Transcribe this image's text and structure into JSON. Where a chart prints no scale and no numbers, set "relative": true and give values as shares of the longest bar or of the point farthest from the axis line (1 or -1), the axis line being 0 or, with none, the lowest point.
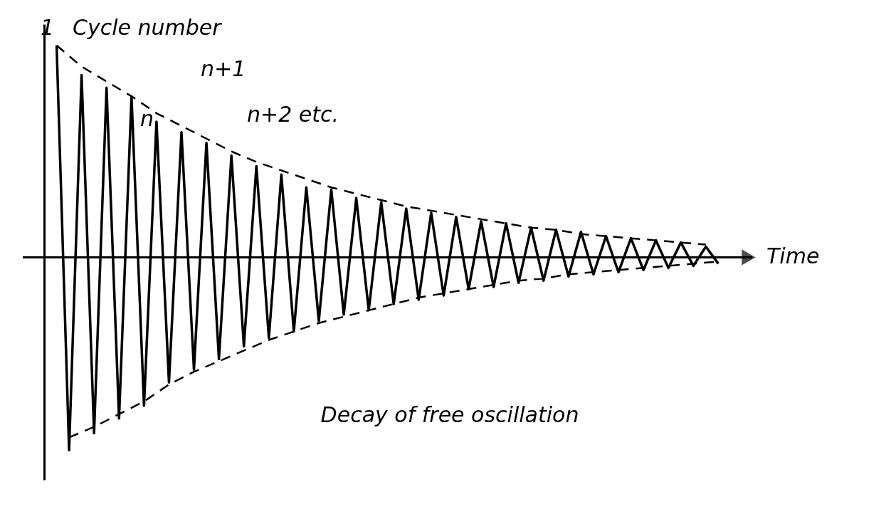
{
  "chart_data": {
    "type": "line",
    "relative": true,
    "xlabel": "Time",
    "tick_labels": false,
    "grid": false,
    "categories": [
      null,
      null,
      null,
      null,
      null,
      null,
      null,
      null,
      null,
      null,
      null,
      null,
      null,
      null,
      null,
      null,
      null,
      null,
      null,
      null,
      null,
      null,
      null,
      null,
      null,
      null,
      null,
      null,
      null,
      null,
      null,
      null,
      null,
      null,
      null,
      null,
      null,
      null,
      null,
      null,
      null,
      null,
      null,
      null,
      null,
      null,
      null,
      null,
      null,
      null,
      null,
      null,
      null,
      null
    ],
    "series": [
      {
        "color": "#000000",
        "line_style": "solid",
        "values": [
          1.0,
          -0.91,
          0.86,
          -0.83,
          0.8,
          -0.76,
          0.76,
          -0.7,
          0.64,
          -0.59,
          0.59,
          -0.53,
          0.54,
          -0.48,
          0.48,
          -0.42,
          0.43,
          -0.38,
          0.39,
          -0.35,
          0.33,
          -0.3,
          0.32,
          -0.27,
          0.28,
          -0.25,
          0.26,
          -0.22,
          0.23,
          -0.2,
          0.21,
          -0.18,
          0.19,
          -0.15,
          0.17,
          -0.14,
          0.16,
          -0.12,
          0.14,
          -0.11,
          0.13,
          -0.09,
          0.12,
          -0.08,
          0.1,
          -0.07,
          0.09,
          -0.06,
          0.08,
          -0.05,
          0.07,
          -0.04,
          0.05,
          -0.03
        ]
      },
      {
        "color": "#000000",
        "line_style": "dashed",
        "values": [
          1.0,
          null,
          0.9,
          null,
          0.83,
          null,
          0.76,
          null,
          0.68,
          null,
          0.62,
          null,
          0.56,
          null,
          0.5,
          null,
          0.45,
          null,
          0.41,
          null,
          0.37,
          null,
          0.33,
          null,
          0.3,
          null,
          0.27,
          null,
          0.24,
          null,
          0.22,
          null,
          0.2,
          null,
          0.18,
          null,
          0.16,
          null,
          0.14,
          null,
          0.13,
          null,
          0.11,
          null,
          0.1,
          null,
          0.09,
          null,
          0.08,
          null,
          0.07,
          null,
          0.06,
          null
        ]
      },
      {
        "color": "#000000",
        "line_style": "dashed",
        "values": [
          null,
          -0.85,
          null,
          -0.8,
          null,
          -0.74,
          null,
          -0.68,
          null,
          -0.6,
          null,
          -0.54,
          null,
          -0.49,
          null,
          -0.44,
          null,
          -0.39,
          null,
          -0.35,
          null,
          -0.31,
          null,
          -0.28,
          null,
          -0.25,
          null,
          -0.22,
          null,
          -0.19,
          null,
          -0.17,
          null,
          -0.15,
          null,
          -0.13,
          null,
          -0.11,
          null,
          -0.1,
          null,
          -0.08,
          null,
          -0.07,
          null,
          -0.06,
          null,
          -0.05,
          null,
          -0.04,
          null,
          -0.03,
          null,
          -0.02
        ]
      }
    ],
    "annotations": [
      "Cycle number",
      "1",
      "n",
      "n+1",
      "n+2 etc.",
      "Decay of free oscillation"
    ]
  }
}
